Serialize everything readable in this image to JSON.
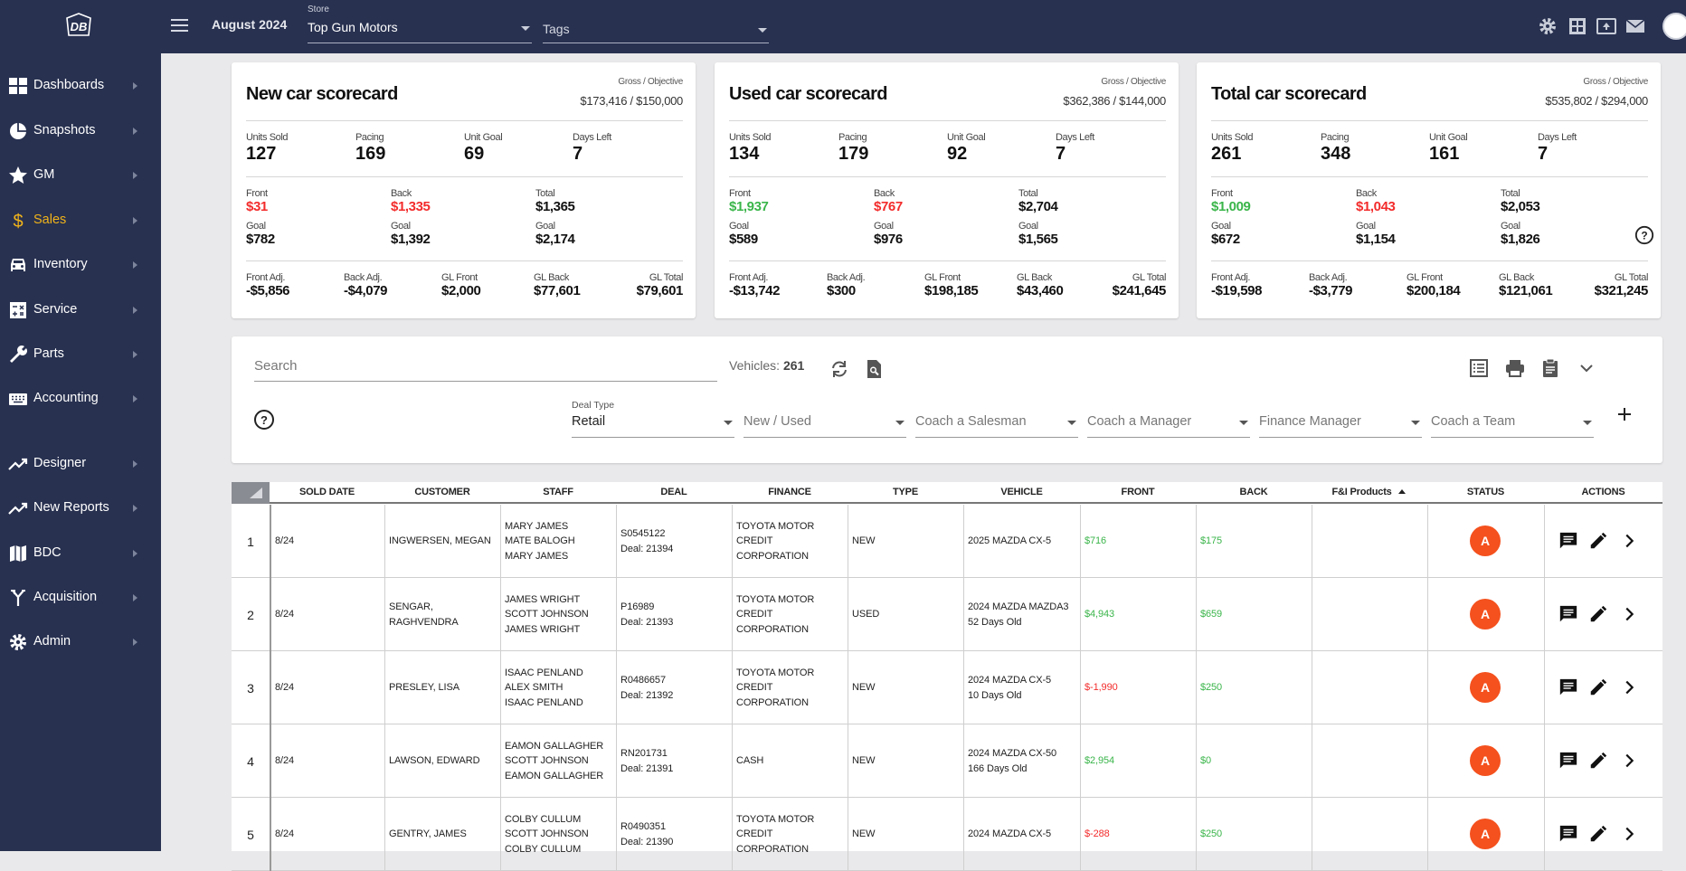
{
  "header": {
    "logo_text": "DB",
    "month": "August 2024",
    "store_label": "Store",
    "store_value": "Top Gun Motors",
    "tags_placeholder": "Tags"
  },
  "sidebar": {
    "items": [
      {
        "label": "Dashboards",
        "icon": "dashboard-icon"
      },
      {
        "label": "Snapshots",
        "icon": "pie-chart-icon"
      },
      {
        "label": "GM",
        "icon": "star-icon"
      },
      {
        "label": "Sales",
        "icon": "dollar-icon",
        "active": true
      },
      {
        "label": "Inventory",
        "icon": "car-icon"
      },
      {
        "label": "Service",
        "icon": "calculator-icon"
      },
      {
        "label": "Parts",
        "icon": "wrench-icon"
      },
      {
        "label": "Accounting",
        "icon": "keyboard-icon"
      },
      {
        "label": "Designer",
        "icon": "trending-up-icon"
      },
      {
        "label": "New Reports",
        "icon": "trending-up-icon"
      },
      {
        "label": "BDC",
        "icon": "map-icon"
      },
      {
        "label": "Acquisition",
        "icon": "merge-icon"
      },
      {
        "label": "Admin",
        "icon": "gear-icon"
      }
    ],
    "active_color": "#f0b31a"
  },
  "scorecards": [
    {
      "title": "New car scorecard",
      "gross_label": "Gross / Objective",
      "gross_value": "$173,416 / $150,000",
      "stats": [
        {
          "label": "Units Sold",
          "value": "127"
        },
        {
          "label": "Pacing",
          "value": "169"
        },
        {
          "label": "Unit Goal",
          "value": "69"
        },
        {
          "label": "Days Left",
          "value": "7"
        }
      ],
      "money": [
        {
          "label": "Front",
          "value": "$31",
          "color": "red",
          "goal_label": "Goal",
          "goal": "$782"
        },
        {
          "label": "Back",
          "value": "$1,335",
          "color": "red",
          "goal_label": "Goal",
          "goal": "$1,392"
        },
        {
          "label": "Total",
          "value": "$1,365",
          "color": "black",
          "goal_label": "Goal",
          "goal": "$2,174"
        }
      ],
      "bottom": [
        {
          "label": "Front Adj.",
          "value": "-$5,856"
        },
        {
          "label": "Back Adj.",
          "value": "-$4,079"
        },
        {
          "label": "GL Front",
          "value": "$2,000"
        },
        {
          "label": "GL Back",
          "value": "$77,601"
        },
        {
          "label": "GL Total",
          "value": "$79,601"
        }
      ]
    },
    {
      "title": "Used car scorecard",
      "gross_label": "Gross / Objective",
      "gross_value": "$362,386 / $144,000",
      "stats": [
        {
          "label": "Units Sold",
          "value": "134"
        },
        {
          "label": "Pacing",
          "value": "179"
        },
        {
          "label": "Unit Goal",
          "value": "92"
        },
        {
          "label": "Days Left",
          "value": "7"
        }
      ],
      "money": [
        {
          "label": "Front",
          "value": "$1,937",
          "color": "green",
          "goal_label": "Goal",
          "goal": "$589"
        },
        {
          "label": "Back",
          "value": "$767",
          "color": "red",
          "goal_label": "Goal",
          "goal": "$976"
        },
        {
          "label": "Total",
          "value": "$2,704",
          "color": "black",
          "goal_label": "Goal",
          "goal": "$1,565"
        }
      ],
      "bottom": [
        {
          "label": "Front Adj.",
          "value": "-$13,742"
        },
        {
          "label": "Back Adj.",
          "value": "$300"
        },
        {
          "label": "GL Front",
          "value": "$198,185"
        },
        {
          "label": "GL Back",
          "value": "$43,460"
        },
        {
          "label": "GL Total",
          "value": "$241,645"
        }
      ]
    },
    {
      "title": "Total car scorecard",
      "gross_label": "Gross / Objective",
      "gross_value": "$535,802 / $294,000",
      "stats": [
        {
          "label": "Units Sold",
          "value": "261"
        },
        {
          "label": "Pacing",
          "value": "348"
        },
        {
          "label": "Unit Goal",
          "value": "161"
        },
        {
          "label": "Days Left",
          "value": "7"
        }
      ],
      "money": [
        {
          "label": "Front",
          "value": "$1,009",
          "color": "green",
          "goal_label": "Goal",
          "goal": "$672"
        },
        {
          "label": "Back",
          "value": "$1,043",
          "color": "red",
          "goal_label": "Goal",
          "goal": "$1,154"
        },
        {
          "label": "Total",
          "value": "$2,053",
          "color": "black",
          "goal_label": "Goal",
          "goal": "$1,826"
        }
      ],
      "bottom": [
        {
          "label": "Front Adj.",
          "value": "-$19,598"
        },
        {
          "label": "Back Adj.",
          "value": "-$3,779"
        },
        {
          "label": "GL Front",
          "value": "$200,184"
        },
        {
          "label": "GL Back",
          "value": "$121,061"
        },
        {
          "label": "GL Total",
          "value": "$321,245"
        }
      ]
    }
  ],
  "filters": {
    "search_placeholder": "Search",
    "vehicles_label": "Vehicles:",
    "vehicles_count": "261",
    "deal_type_label": "Deal Type",
    "deal_type_value": "Retail",
    "new_used": "New / Used",
    "salesman": "Coach a Salesman",
    "manager": "Coach a Manager",
    "finance_manager": "Finance Manager",
    "team": "Coach a Team"
  },
  "table": {
    "columns": [
      "SOLD DATE",
      "CUSTOMER",
      "STAFF",
      "DEAL",
      "FINANCE",
      "TYPE",
      "VEHICLE",
      "FRONT",
      "BACK",
      "F&I Products",
      "STATUS",
      "ACTIONS"
    ],
    "rows": [
      {
        "num": "1",
        "date": "8/24",
        "customer": "INGWERSEN, MEGAN",
        "staff": [
          "MARY JAMES",
          "MATE BALOGH",
          "MARY JAMES"
        ],
        "deal": [
          "S0545122",
          "Deal: 21394"
        ],
        "finance": [
          "TOYOTA MOTOR",
          "CREDIT CORPORATION"
        ],
        "type": "NEW",
        "vehicle": [
          "2025 MAZDA CX-5"
        ],
        "front": "$716",
        "front_color": "green",
        "back": "$175",
        "back_color": "green",
        "status": "A"
      },
      {
        "num": "2",
        "date": "8/24",
        "customer": "SENGAR, RAGHVENDRA",
        "staff": [
          "JAMES WRIGHT",
          "SCOTT JOHNSON",
          "JAMES WRIGHT"
        ],
        "deal": [
          "P16989",
          "Deal: 21393"
        ],
        "finance": [
          "TOYOTA MOTOR",
          "CREDIT CORPORATION"
        ],
        "type": "USED",
        "vehicle": [
          "2024 MAZDA MAZDA3",
          "52 Days Old"
        ],
        "front": "$4,943",
        "front_color": "green",
        "back": "$659",
        "back_color": "green",
        "status": "A"
      },
      {
        "num": "3",
        "date": "8/24",
        "customer": "PRESLEY, LISA",
        "staff": [
          "ISAAC PENLAND",
          "ALEX SMITH",
          "ISAAC PENLAND"
        ],
        "deal": [
          "R0486657",
          "Deal: 21392"
        ],
        "finance": [
          "TOYOTA MOTOR",
          "CREDIT CORPORATION"
        ],
        "type": "NEW",
        "vehicle": [
          "2024 MAZDA CX-5",
          "10 Days Old"
        ],
        "front": "$-1,990",
        "front_color": "red",
        "back": "$250",
        "back_color": "green",
        "status": "A"
      },
      {
        "num": "4",
        "date": "8/24",
        "customer": "LAWSON, EDWARD",
        "staff": [
          "EAMON GALLAGHER",
          "SCOTT JOHNSON",
          "EAMON GALLAGHER"
        ],
        "deal": [
          "RN201731",
          "Deal: 21391"
        ],
        "finance": [
          "CASH"
        ],
        "type": "NEW",
        "vehicle": [
          "2024 MAZDA CX-50",
          "166 Days Old"
        ],
        "front": "$2,954",
        "front_color": "green",
        "back": "$0",
        "back_color": "green",
        "status": "A"
      },
      {
        "num": "5",
        "date": "8/24",
        "customer": "GENTRY, JAMES",
        "staff": [
          "COLBY CULLUM",
          "SCOTT JOHNSON",
          "COLBY CULLUM"
        ],
        "deal": [
          "R0490351",
          "Deal: 21390"
        ],
        "finance": [
          "TOYOTA MOTOR",
          "CREDIT CORPORATION"
        ],
        "type": "NEW",
        "vehicle": [
          "2024 MAZDA CX-5"
        ],
        "front": "$-288",
        "front_color": "red",
        "back": "$250",
        "back_color": "green",
        "status": "A"
      }
    ]
  },
  "colors": {
    "nav_bg": "#283150",
    "status_badge": "#f4511e",
    "positive": "#3ab54a",
    "negative": "#f32b2b"
  }
}
